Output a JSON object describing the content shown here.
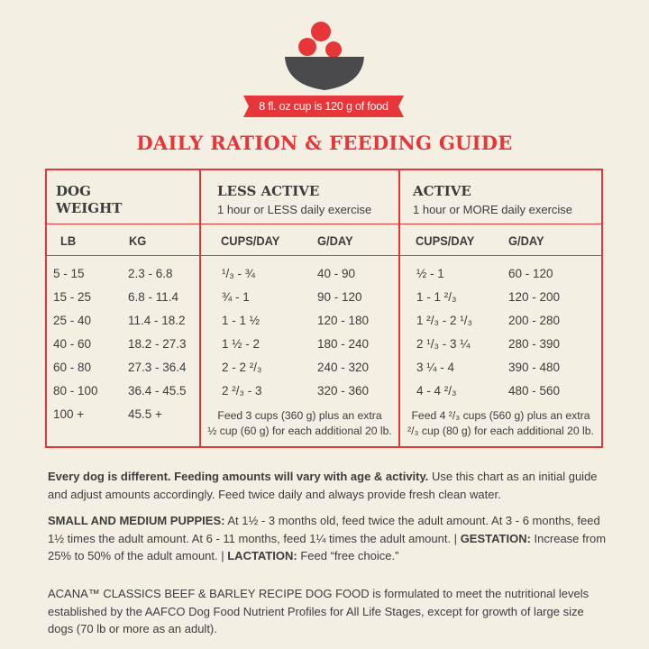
{
  "banner": {
    "cup_text": "8 fl. oz cup is 120 g of food"
  },
  "title": "DAILY RATION & FEEDING GUIDE",
  "columns": {
    "weight": {
      "title_line1": "DOG",
      "title_line2": "WEIGHT",
      "lb": "LB",
      "kg": "KG"
    },
    "less_active": {
      "title": "LESS ACTIVE",
      "subtitle": "1 hour or LESS daily exercise",
      "cups": "CUPS/DAY",
      "grams": "G/DAY"
    },
    "active": {
      "title": "ACTIVE",
      "subtitle": "1 hour or MORE daily exercise",
      "cups": "CUPS/DAY",
      "grams": "G/DAY"
    }
  },
  "rows": [
    {
      "lb": "5 - 15",
      "kg": "2.3 - 6.8",
      "la_cups": "¹/₃ - ¾",
      "la_g": "40 - 90",
      "a_cups": "½ - 1",
      "a_g": "60 - 120"
    },
    {
      "lb": "15 - 25",
      "kg": "6.8 - 11.4",
      "la_cups": "¾ - 1",
      "la_g": "90 - 120",
      "a_cups": "1 - 1 ²/₃",
      "a_g": "120 - 200"
    },
    {
      "lb": "25 - 40",
      "kg": "11.4 - 18.2",
      "la_cups": "1 - 1 ½",
      "la_g": "120 - 180",
      "a_cups": "1 ²/₃ - 2 ¹/₃",
      "a_g": "200 - 280"
    },
    {
      "lb": "40 - 60",
      "kg": "18.2 - 27.3",
      "la_cups": "1 ½ - 2",
      "la_g": "180 - 240",
      "a_cups": "2 ¹/₃ - 3 ¼",
      "a_g": "280 - 390"
    },
    {
      "lb": "60 - 80",
      "kg": "27.3 - 36.4",
      "la_cups": "2 - 2 ²/₃",
      "la_g": "240 - 320",
      "a_cups": "3 ¼ - 4",
      "a_g": "390 - 480"
    },
    {
      "lb": "80 - 100",
      "kg": "36.4 - 45.5",
      "la_cups": "2 ²/₃ - 3",
      "la_g": "320 - 360",
      "a_cups": "4 - 4 ²/₃",
      "a_g": "480 - 560"
    },
    {
      "lb": "100 +",
      "kg": "45.5 +"
    }
  ],
  "notes": {
    "less_active_line1": "Feed 3 cups (360 g) plus an extra",
    "less_active_line2": "½ cup (60 g) for each additional 20 lb.",
    "active_line1": "Feed 4 ²/₃ cups (560 g) plus an extra",
    "active_line2": "²/₃ cup (80 g) for each additional 20 lb."
  },
  "paragraphs": {
    "p1_bold": "Every dog is different. Feeding amounts will vary with age & activity.",
    "p1_rest": " Use this chart as an initial guide and adjust amounts accordingly. Feed twice daily and always provide fresh clean water.",
    "p2_bold1": "SMALL AND MEDIUM PUPPIES:",
    "p2_text1": " At 1½ - 3 months old, feed twice the adult amount. At 3 - 6 months, feed 1½ times the adult amount. At 6 - 11 months, feed 1¼ times the adult amount.  | ",
    "p2_bold2": "GESTATION:",
    "p2_text2": " Increase from 25% to 50% of the adult amount.  | ",
    "p2_bold3": "LACTATION:",
    "p2_text3": " Feed “free choice.”",
    "p3": "ACANA™ CLASSICS BEEF & BARLEY RECIPE DOG FOOD is formulated to meet the nutritional levels established by the AAFCO Dog Food Nutrient Profiles for All Life Stages, except for growth of large size dogs (70 lb or more as an adult)."
  },
  "colors": {
    "red": "#e8353a",
    "bowl": "#4a4a4c",
    "background": "#f3efe3",
    "text": "#3d3d3d"
  },
  "icons": [
    "bowl-with-food-icon"
  ]
}
